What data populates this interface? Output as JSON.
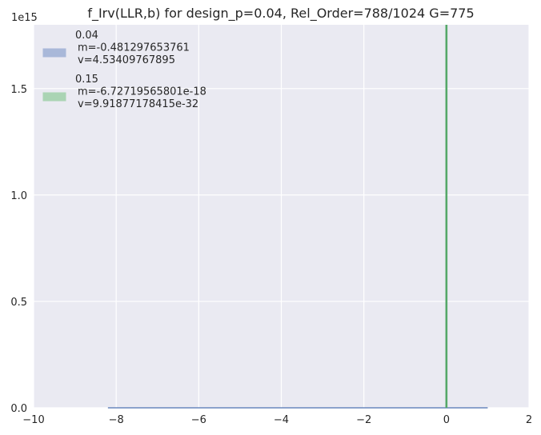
{
  "chart_data": {
    "type": "area",
    "title": "f_Irv(LLR,b) for design_p=0.04, Rel_Order=788/1024 G=775",
    "xlabel": "",
    "ylabel": "",
    "y_offset_label": "1e15",
    "xlim": [
      -10,
      2
    ],
    "ylim": [
      0,
      1800000000000000.0
    ],
    "x_ticks": [
      -10,
      -8,
      -6,
      -4,
      -2,
      0,
      2
    ],
    "x_tick_labels": [
      "−10",
      "−8",
      "−6",
      "−4",
      "−2",
      "0",
      "2"
    ],
    "y_ticks": [
      0,
      500000000000000.0,
      1000000000000000.0,
      1500000000000000.0
    ],
    "y_tick_labels": [
      "0.0",
      "0.5",
      "1.0",
      "1.5"
    ],
    "grid": true,
    "legend_position": "top-left",
    "series": [
      {
        "name": "0.04",
        "legend_lines": [
          "0.04",
          "m=-0.481297653761",
          "v=4.53409767895"
        ],
        "color": "#4c72b0",
        "fill": "#a9b8d9",
        "x": [
          -8.2,
          1.0
        ],
        "y": [
          0.0,
          0.0
        ]
      },
      {
        "name": "0.15",
        "legend_lines": [
          "0.15",
          "m=-6.72719565801e-18",
          "v=9.91877178415e-32"
        ],
        "color": "#55a868",
        "fill": "#aad4b4",
        "x": [
          0.0,
          0.0
        ],
        "y": [
          0.0,
          1800000000000000.0
        ]
      }
    ]
  },
  "colors": {
    "axes_bg": "#eaeaf2",
    "grid": "#ffffff",
    "text": "#262626"
  }
}
